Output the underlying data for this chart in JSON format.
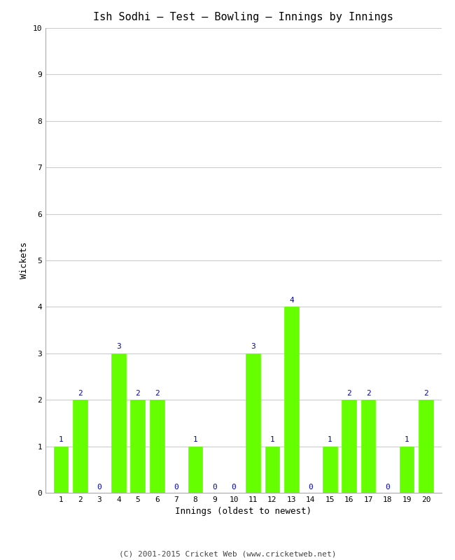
{
  "title": "Ish Sodhi – Test – Bowling – Innings by Innings",
  "xlabel": "Innings (oldest to newest)",
  "ylabel": "Wickets",
  "innings": [
    1,
    2,
    3,
    4,
    5,
    6,
    7,
    8,
    9,
    10,
    11,
    12,
    13,
    14,
    15,
    16,
    17,
    18,
    19,
    20
  ],
  "wickets": [
    1,
    2,
    0,
    3,
    2,
    2,
    0,
    1,
    0,
    0,
    3,
    1,
    4,
    0,
    1,
    2,
    2,
    0,
    1,
    2
  ],
  "bar_color": "#66ff00",
  "bar_edge_color": "#66ff00",
  "label_color": "#0000cc",
  "ylim": [
    0,
    10
  ],
  "yticks": [
    0,
    1,
    2,
    3,
    4,
    5,
    6,
    7,
    8,
    9,
    10
  ],
  "background_color": "#ffffff",
  "grid_color": "#cccccc",
  "title_fontsize": 11,
  "axis_label_fontsize": 9,
  "tick_fontsize": 8,
  "label_fontsize": 8,
  "footer": "(C) 2001-2015 Cricket Web (www.cricketweb.net)",
  "footer_fontsize": 8
}
